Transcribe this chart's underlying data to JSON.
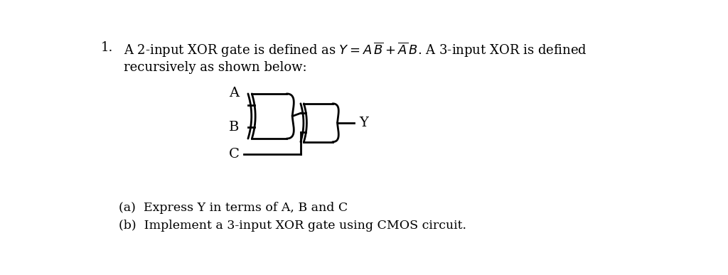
{
  "bg_color": "#ffffff",
  "text_color": "#000000",
  "line_width": 2.0,
  "title_number": "1.",
  "line1": "A 2-input XOR gate is defined as $Y = A\\,\\overline{B} + \\overline{A}\\,B$. A 3-input XOR is defined",
  "line2": "recursively as shown below:",
  "label_A": "A",
  "label_B": "B",
  "label_C": "C",
  "label_Y": "Y",
  "sub_a": "(a)  Express Y in terms of A, B and C",
  "sub_b": "(b)  Implement a 3-input XOR gate using CMOS circuit.",
  "font_size_main": 13,
  "font_size_labels": 14,
  "font_size_sub": 12.5
}
